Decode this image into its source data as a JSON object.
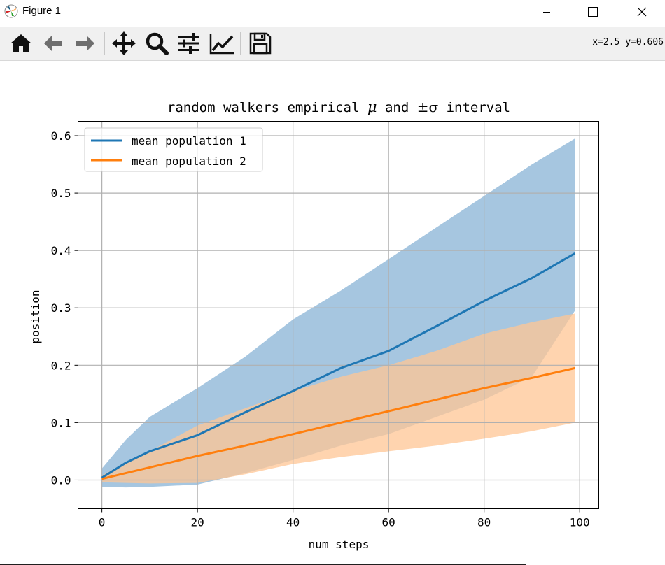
{
  "window": {
    "title": "Figure 1",
    "controls": [
      "minimize",
      "maximize",
      "close"
    ]
  },
  "toolbar": {
    "tools": [
      "home-icon",
      "back-icon",
      "forward-icon",
      "pan-icon",
      "zoom-icon",
      "configure-subplots-icon",
      "edit-axes-icon",
      "save-icon"
    ],
    "coords": "x=2.5 y=0.606"
  },
  "chart_data": {
    "type": "line",
    "title_prefix": "random walkers empirical ",
    "title_mu": "μ",
    "title_mid": " and ",
    "title_pm_sigma": "±σ",
    "title_suffix": " interval",
    "xlabel": "num steps",
    "ylabel": "position",
    "xlim": [
      -5,
      104
    ],
    "ylim": [
      -0.05,
      0.625
    ],
    "xticks": [
      0,
      20,
      40,
      60,
      80,
      100
    ],
    "yticks": [
      0.0,
      0.1,
      0.2,
      0.3,
      0.4,
      0.5,
      0.6
    ],
    "xtick_labels": [
      "0",
      "20",
      "40",
      "60",
      "80",
      "100"
    ],
    "ytick_labels": [
      "0.0",
      "0.1",
      "0.2",
      "0.3",
      "0.4",
      "0.5",
      "0.6"
    ],
    "grid": true,
    "legend_position": "top-left",
    "series": [
      {
        "name": "mean population 1",
        "color": "#1f77b4",
        "band_color": "#a6c6e0",
        "x": [
          0,
          5,
          10,
          20,
          30,
          40,
          50,
          60,
          70,
          80,
          90,
          99
        ],
        "mean": [
          0.004,
          0.03,
          0.05,
          0.078,
          0.118,
          0.155,
          0.195,
          0.225,
          0.268,
          0.312,
          0.352,
          0.395
        ],
        "upper": [
          0.02,
          0.07,
          0.11,
          0.16,
          0.215,
          0.28,
          0.33,
          0.385,
          0.44,
          0.495,
          0.55,
          0.595
        ],
        "lower": [
          -0.012,
          -0.013,
          -0.012,
          -0.008,
          0.012,
          0.035,
          0.06,
          0.08,
          0.11,
          0.14,
          0.18,
          0.295
        ]
      },
      {
        "name": "mean population 2",
        "color": "#ff7f0e",
        "band_color": "#ffc594",
        "x": [
          0,
          5,
          10,
          20,
          30,
          40,
          50,
          60,
          70,
          80,
          90,
          99
        ],
        "mean": [
          0.002,
          0.012,
          0.022,
          0.042,
          0.06,
          0.08,
          0.1,
          0.12,
          0.14,
          0.16,
          0.178,
          0.195
        ],
        "upper": [
          0.008,
          0.03,
          0.05,
          0.095,
          0.125,
          0.155,
          0.18,
          0.2,
          0.225,
          0.255,
          0.275,
          0.29
        ],
        "lower": [
          -0.004,
          -0.005,
          -0.006,
          -0.005,
          0.01,
          0.028,
          0.04,
          0.05,
          0.06,
          0.072,
          0.085,
          0.1
        ]
      }
    ]
  }
}
